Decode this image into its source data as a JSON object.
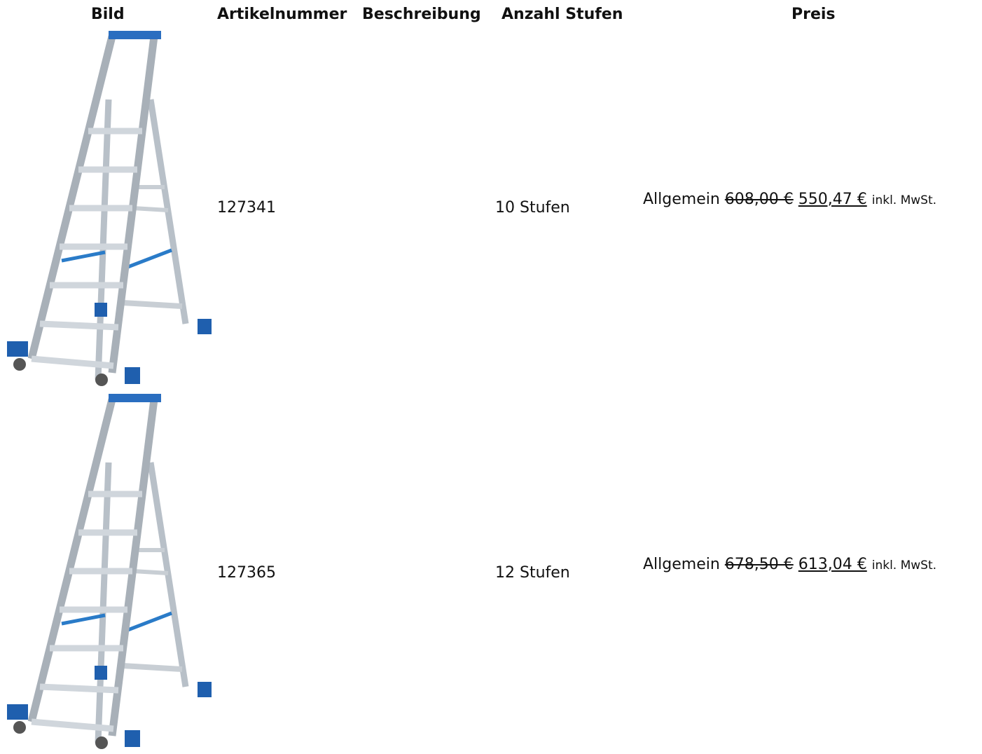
{
  "table": {
    "header": [
      "Bild",
      "Artikelnummer",
      "Beschreibung",
      "Anzahl Stufen",
      "Preis"
    ],
    "rows": [
      {
        "article": "127341",
        "steps": "10 Stufen",
        "price": {
          "label": "Allgemein",
          "old": "608,00 €",
          "new": "550,47 €",
          "note": "inkl. MwSt."
        }
      },
      {
        "article": "127365",
        "steps": "12 Stufen",
        "price": {
          "label": "Allgemein",
          "old": "678,50 €",
          "new": "613,04 €",
          "note": "inkl. MwSt."
        }
      }
    ]
  }
}
